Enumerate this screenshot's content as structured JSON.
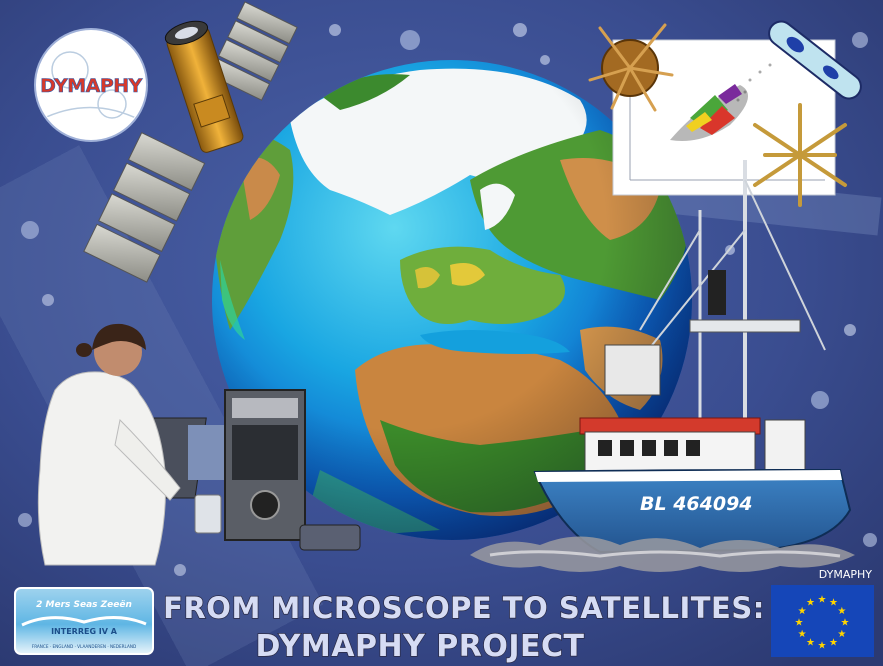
{
  "logo_text": "DYMAPHY",
  "ship_registration": "BL 464094",
  "corner_label": "DYMAPHY",
  "title_line_1": "FROM MICROSCOPE TO SATELLITES:",
  "title_line_2": "DYMAPHY PROJECT",
  "interreg_logo": {
    "line1": "2 Mers Seas Zeeën",
    "line2": "INTERREG IV A",
    "line3": "FRANCE · ENGLAND · VLAANDEREN · NEDERLAND"
  },
  "colors": {
    "background": "#3b4e92",
    "title_fill": "#d6dcf4",
    "title_stroke": "#2a2a44",
    "eu_blue": "#1546b8",
    "eu_star": "#ffd400",
    "ship_hull": "#2f6fb2",
    "ship_cabin_roof": "#d33a2c"
  },
  "icons": {
    "satellite": "satellite-icon",
    "globe": "earth-globe-icon",
    "eu_flag": "eu-flag-icon"
  }
}
